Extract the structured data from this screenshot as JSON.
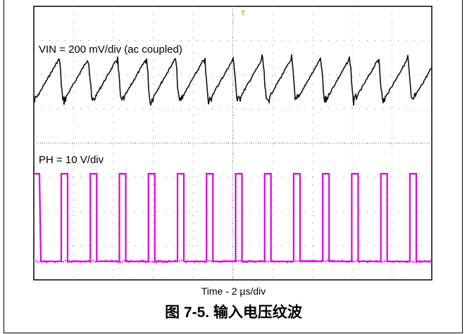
{
  "chart_data": {
    "type": "line",
    "title": "",
    "xlabel": "Time - 2 µs/div",
    "x_divisions": 10,
    "y_divisions": 8,
    "trigger_marker": "T",
    "series": [
      {
        "name": "VIN = 200 mV/div (ac coupled)",
        "color": "#000000",
        "waveform": "sawtooth ripple",
        "period_div": 0.73,
        "peak_to_peak_div": 1.3,
        "ramp_start_div": 0.0
      },
      {
        "name": "PH = 10 V/div",
        "color": "#e000e0",
        "waveform": "square pulses",
        "period_div": 0.73,
        "high_duration_div": 0.16,
        "amplitude_div": 2.5,
        "first_rise_div": 0.69
      }
    ]
  },
  "labels": {
    "ch1": "VIN = 200 mV/div (ac coupled)",
    "ch2": "PH = 10 V/div",
    "timebase": "Time - 2 µs/div",
    "caption": "图 7-5. 输入电压纹波"
  },
  "colors": {
    "grid": "#7f7f7f",
    "trace1": "#111111",
    "trace2": "#e000e0",
    "trigger": "#f0a000"
  }
}
